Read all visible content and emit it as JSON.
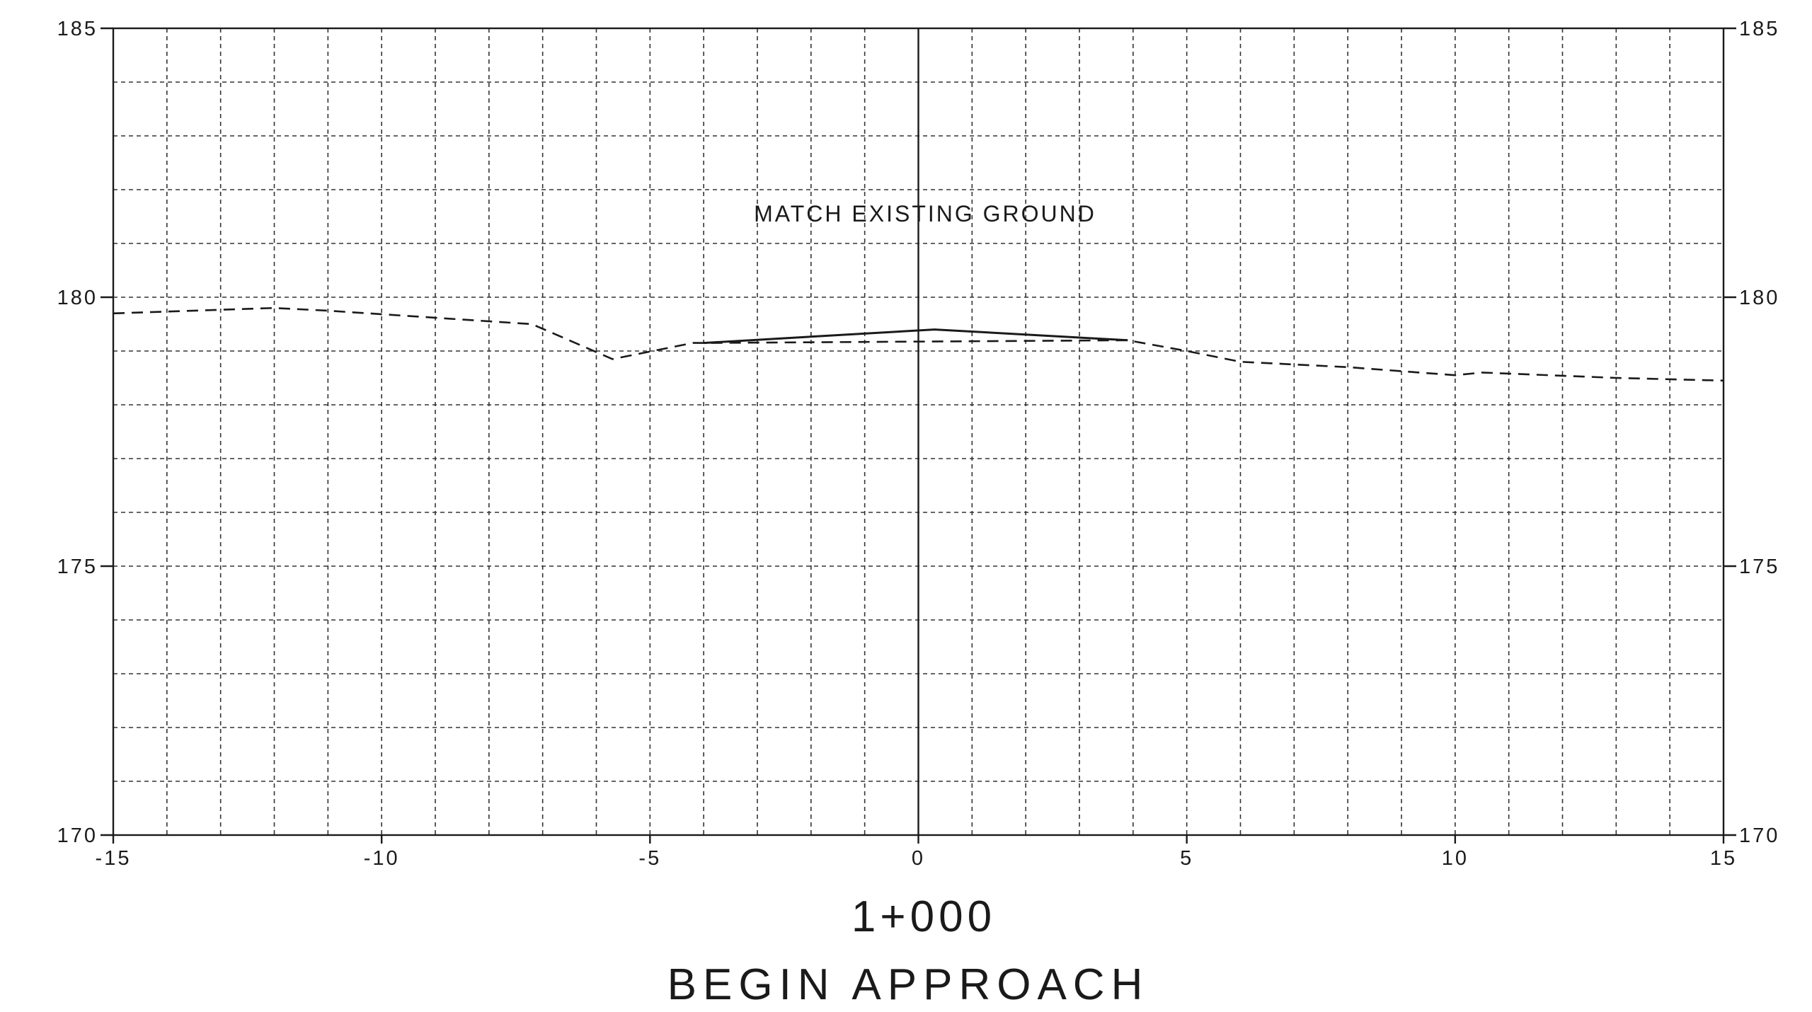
{
  "chart_data": {
    "type": "line",
    "title": "",
    "station_label": "1+000",
    "caption": "BEGIN APPROACH",
    "annotation": "MATCH EXISTING GROUND",
    "xlabel": "",
    "ylabel": "",
    "xlim": [
      -15,
      15
    ],
    "ylim": [
      170,
      185
    ],
    "x_ticks": [
      -15,
      -10,
      -5,
      0,
      5,
      10,
      15
    ],
    "x_tick_labels": [
      "-15",
      "-10",
      "-5",
      "0",
      "5",
      "10",
      "15"
    ],
    "y_ticks": [
      170,
      175,
      180,
      185
    ],
    "y_tick_labels": [
      "170",
      "175",
      "180",
      "185"
    ],
    "y_labels_both_sides": true,
    "grid": true,
    "grid_x_step": 1,
    "grid_y_step": 1,
    "centerline_x": 0,
    "series": [
      {
        "style": "dashed",
        "x": [
          -15,
          -12,
          -11,
          -7.2,
          -5.7,
          -4.2,
          -4,
          3.9,
          5,
          6,
          8,
          10,
          10.5,
          13,
          15
        ],
        "y": [
          179.7,
          179.8,
          179.75,
          179.5,
          178.85,
          179.15,
          179.15,
          179.2,
          179.0,
          178.8,
          178.7,
          178.55,
          178.6,
          178.5,
          178.45
        ]
      },
      {
        "style": "solid",
        "x": [
          -4,
          0.3,
          3.9
        ],
        "y": [
          179.15,
          179.4,
          179.2
        ]
      }
    ]
  }
}
